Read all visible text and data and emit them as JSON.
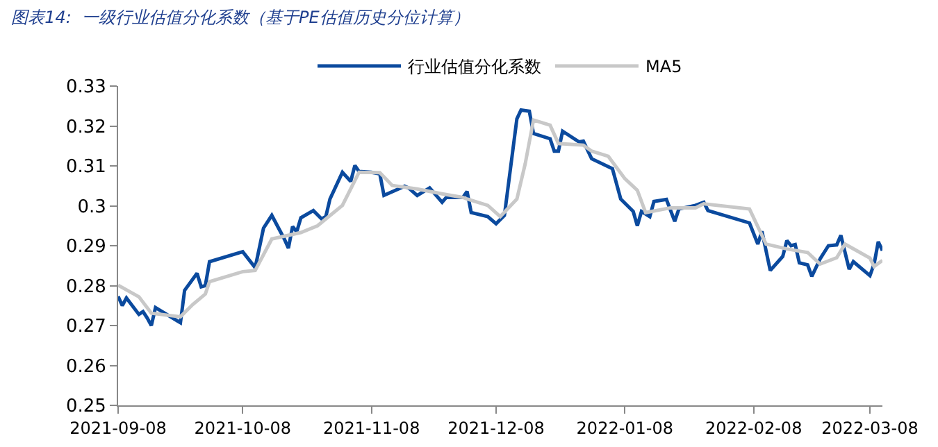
{
  "chart_data": {
    "type": "line",
    "title": "图表14:  一级行业估值分化系数（基于PE估值历史分位计算）",
    "ylim": [
      0.25,
      0.33
    ],
    "yticks": [
      0.25,
      0.26,
      0.27,
      0.28,
      0.29,
      0.3,
      0.31,
      0.32,
      0.33
    ],
    "xlim": [
      "2021-09-08",
      "2022-03-11"
    ],
    "xticks": [
      "2021-09-08",
      "2021-10-08",
      "2021-11-08",
      "2021-12-08",
      "2022-01-08",
      "2022-02-08",
      "2022-03-08"
    ],
    "grid": false,
    "legend": "top",
    "marker": "none",
    "line_style": "solid",
    "series": [
      {
        "name": "行业估值分化系数",
        "color": "#0b4a9e",
        "x": [
          "2021-09-08",
          "2021-09-09",
          "2021-09-10",
          "2021-09-13",
          "2021-09-14",
          "2021-09-15",
          "2021-09-16",
          "2021-09-17",
          "2021-09-23",
          "2021-09-24",
          "2021-09-27",
          "2021-09-28",
          "2021-09-29",
          "2021-09-30",
          "2021-10-08",
          "2021-10-11",
          "2021-10-13",
          "2021-10-15",
          "2021-10-18",
          "2021-10-19",
          "2021-10-20",
          "2021-10-21",
          "2021-10-22",
          "2021-10-25",
          "2021-10-27",
          "2021-10-28",
          "2021-10-29",
          "2021-11-01",
          "2021-11-03",
          "2021-11-04",
          "2021-11-05",
          "2021-11-08",
          "2021-11-10",
          "2021-11-11",
          "2021-11-16",
          "2021-11-17",
          "2021-11-19",
          "2021-11-22",
          "2021-11-25",
          "2021-11-26",
          "2021-11-30",
          "2021-12-01",
          "2021-12-02",
          "2021-12-06",
          "2021-12-08",
          "2021-12-10",
          "2021-12-13",
          "2021-12-14",
          "2021-12-16",
          "2021-12-17",
          "2021-12-21",
          "2021-12-22",
          "2021-12-23",
          "2021-12-24",
          "2021-12-28",
          "2021-12-29",
          "2021-12-31",
          "2022-01-05",
          "2022-01-07",
          "2022-01-10",
          "2022-01-11",
          "2022-01-12",
          "2022-01-14",
          "2022-01-15",
          "2022-01-18",
          "2022-01-20",
          "2022-01-21",
          "2022-01-25",
          "2022-01-27",
          "2022-01-28",
          "2022-02-07",
          "2022-02-09",
          "2022-02-10",
          "2022-02-12",
          "2022-02-15",
          "2022-02-16",
          "2022-02-17",
          "2022-02-18",
          "2022-02-19",
          "2022-02-21",
          "2022-02-22",
          "2022-02-24",
          "2022-02-26",
          "2022-02-28",
          "2022-03-01",
          "2022-03-03",
          "2022-03-04",
          "2022-03-08",
          "2022-03-09",
          "2022-03-10",
          "2022-03-11"
        ],
        "values": [
          0.2773,
          0.275,
          0.2769,
          0.2728,
          0.2735,
          0.2719,
          0.27,
          0.2745,
          0.2707,
          0.2788,
          0.2831,
          0.2797,
          0.28,
          0.286,
          0.2885,
          0.2845,
          0.2944,
          0.2976,
          0.2917,
          0.2894,
          0.2948,
          0.2935,
          0.297,
          0.2988,
          0.2967,
          0.2973,
          0.3017,
          0.3084,
          0.3061,
          0.3101,
          0.3086,
          0.3084,
          0.308,
          0.3026,
          0.3049,
          0.3044,
          0.3026,
          0.3045,
          0.3009,
          0.3021,
          0.3021,
          0.3036,
          0.2983,
          0.2973,
          0.2955,
          0.2976,
          0.3218,
          0.324,
          0.3237,
          0.3181,
          0.3168,
          0.3137,
          0.3137,
          0.3187,
          0.316,
          0.3162,
          0.3118,
          0.3093,
          0.3017,
          0.2986,
          0.295,
          0.2986,
          0.2973,
          0.3011,
          0.3016,
          0.2961,
          0.2992,
          0.3001,
          0.3009,
          0.2988,
          0.2957,
          0.2904,
          0.2936,
          0.2838,
          0.2873,
          0.2913,
          0.29,
          0.2903,
          0.2857,
          0.2852,
          0.2823,
          0.2867,
          0.29,
          0.2902,
          0.2926,
          0.2841,
          0.286,
          0.2825,
          0.2854,
          0.291,
          0.2888
        ]
      },
      {
        "name": "MA5",
        "color": "#c8c8c8",
        "x": [
          "2021-09-08",
          "2021-09-13",
          "2021-09-16",
          "2021-09-23",
          "2021-09-26",
          "2021-09-29",
          "2021-09-30",
          "2021-10-08",
          "2021-10-11",
          "2021-10-15",
          "2021-10-22",
          "2021-10-26",
          "2021-11-01",
          "2021-11-05",
          "2021-11-10",
          "2021-11-13",
          "2021-11-19",
          "2021-11-25",
          "2021-11-30",
          "2021-12-01",
          "2021-12-06",
          "2021-12-09",
          "2021-12-13",
          "2021-12-15",
          "2021-12-17",
          "2021-12-21",
          "2021-12-23",
          "2021-12-29",
          "2021-12-31",
          "2022-01-04",
          "2022-01-08",
          "2022-01-11",
          "2022-01-13",
          "2022-01-19",
          "2022-01-25",
          "2022-01-27",
          "2022-02-07",
          "2022-02-11",
          "2022-02-16",
          "2022-02-21",
          "2022-02-24",
          "2022-02-28",
          "2022-03-02",
          "2022-03-08",
          "2022-03-09",
          "2022-03-11"
        ],
        "values": [
          0.2801,
          0.2772,
          0.2731,
          0.2722,
          0.2753,
          0.2779,
          0.281,
          0.2835,
          0.2838,
          0.2917,
          0.2933,
          0.295,
          0.3001,
          0.3084,
          0.3083,
          0.3051,
          0.3042,
          0.303,
          0.3021,
          0.3017,
          0.3001,
          0.2973,
          0.3017,
          0.3105,
          0.3215,
          0.3202,
          0.3156,
          0.3152,
          0.3137,
          0.3124,
          0.3068,
          0.3039,
          0.2983,
          0.2995,
          0.2995,
          0.3005,
          0.2992,
          0.2904,
          0.2892,
          0.2883,
          0.2854,
          0.287,
          0.2904,
          0.2869,
          0.2848,
          0.2863
        ]
      }
    ]
  }
}
